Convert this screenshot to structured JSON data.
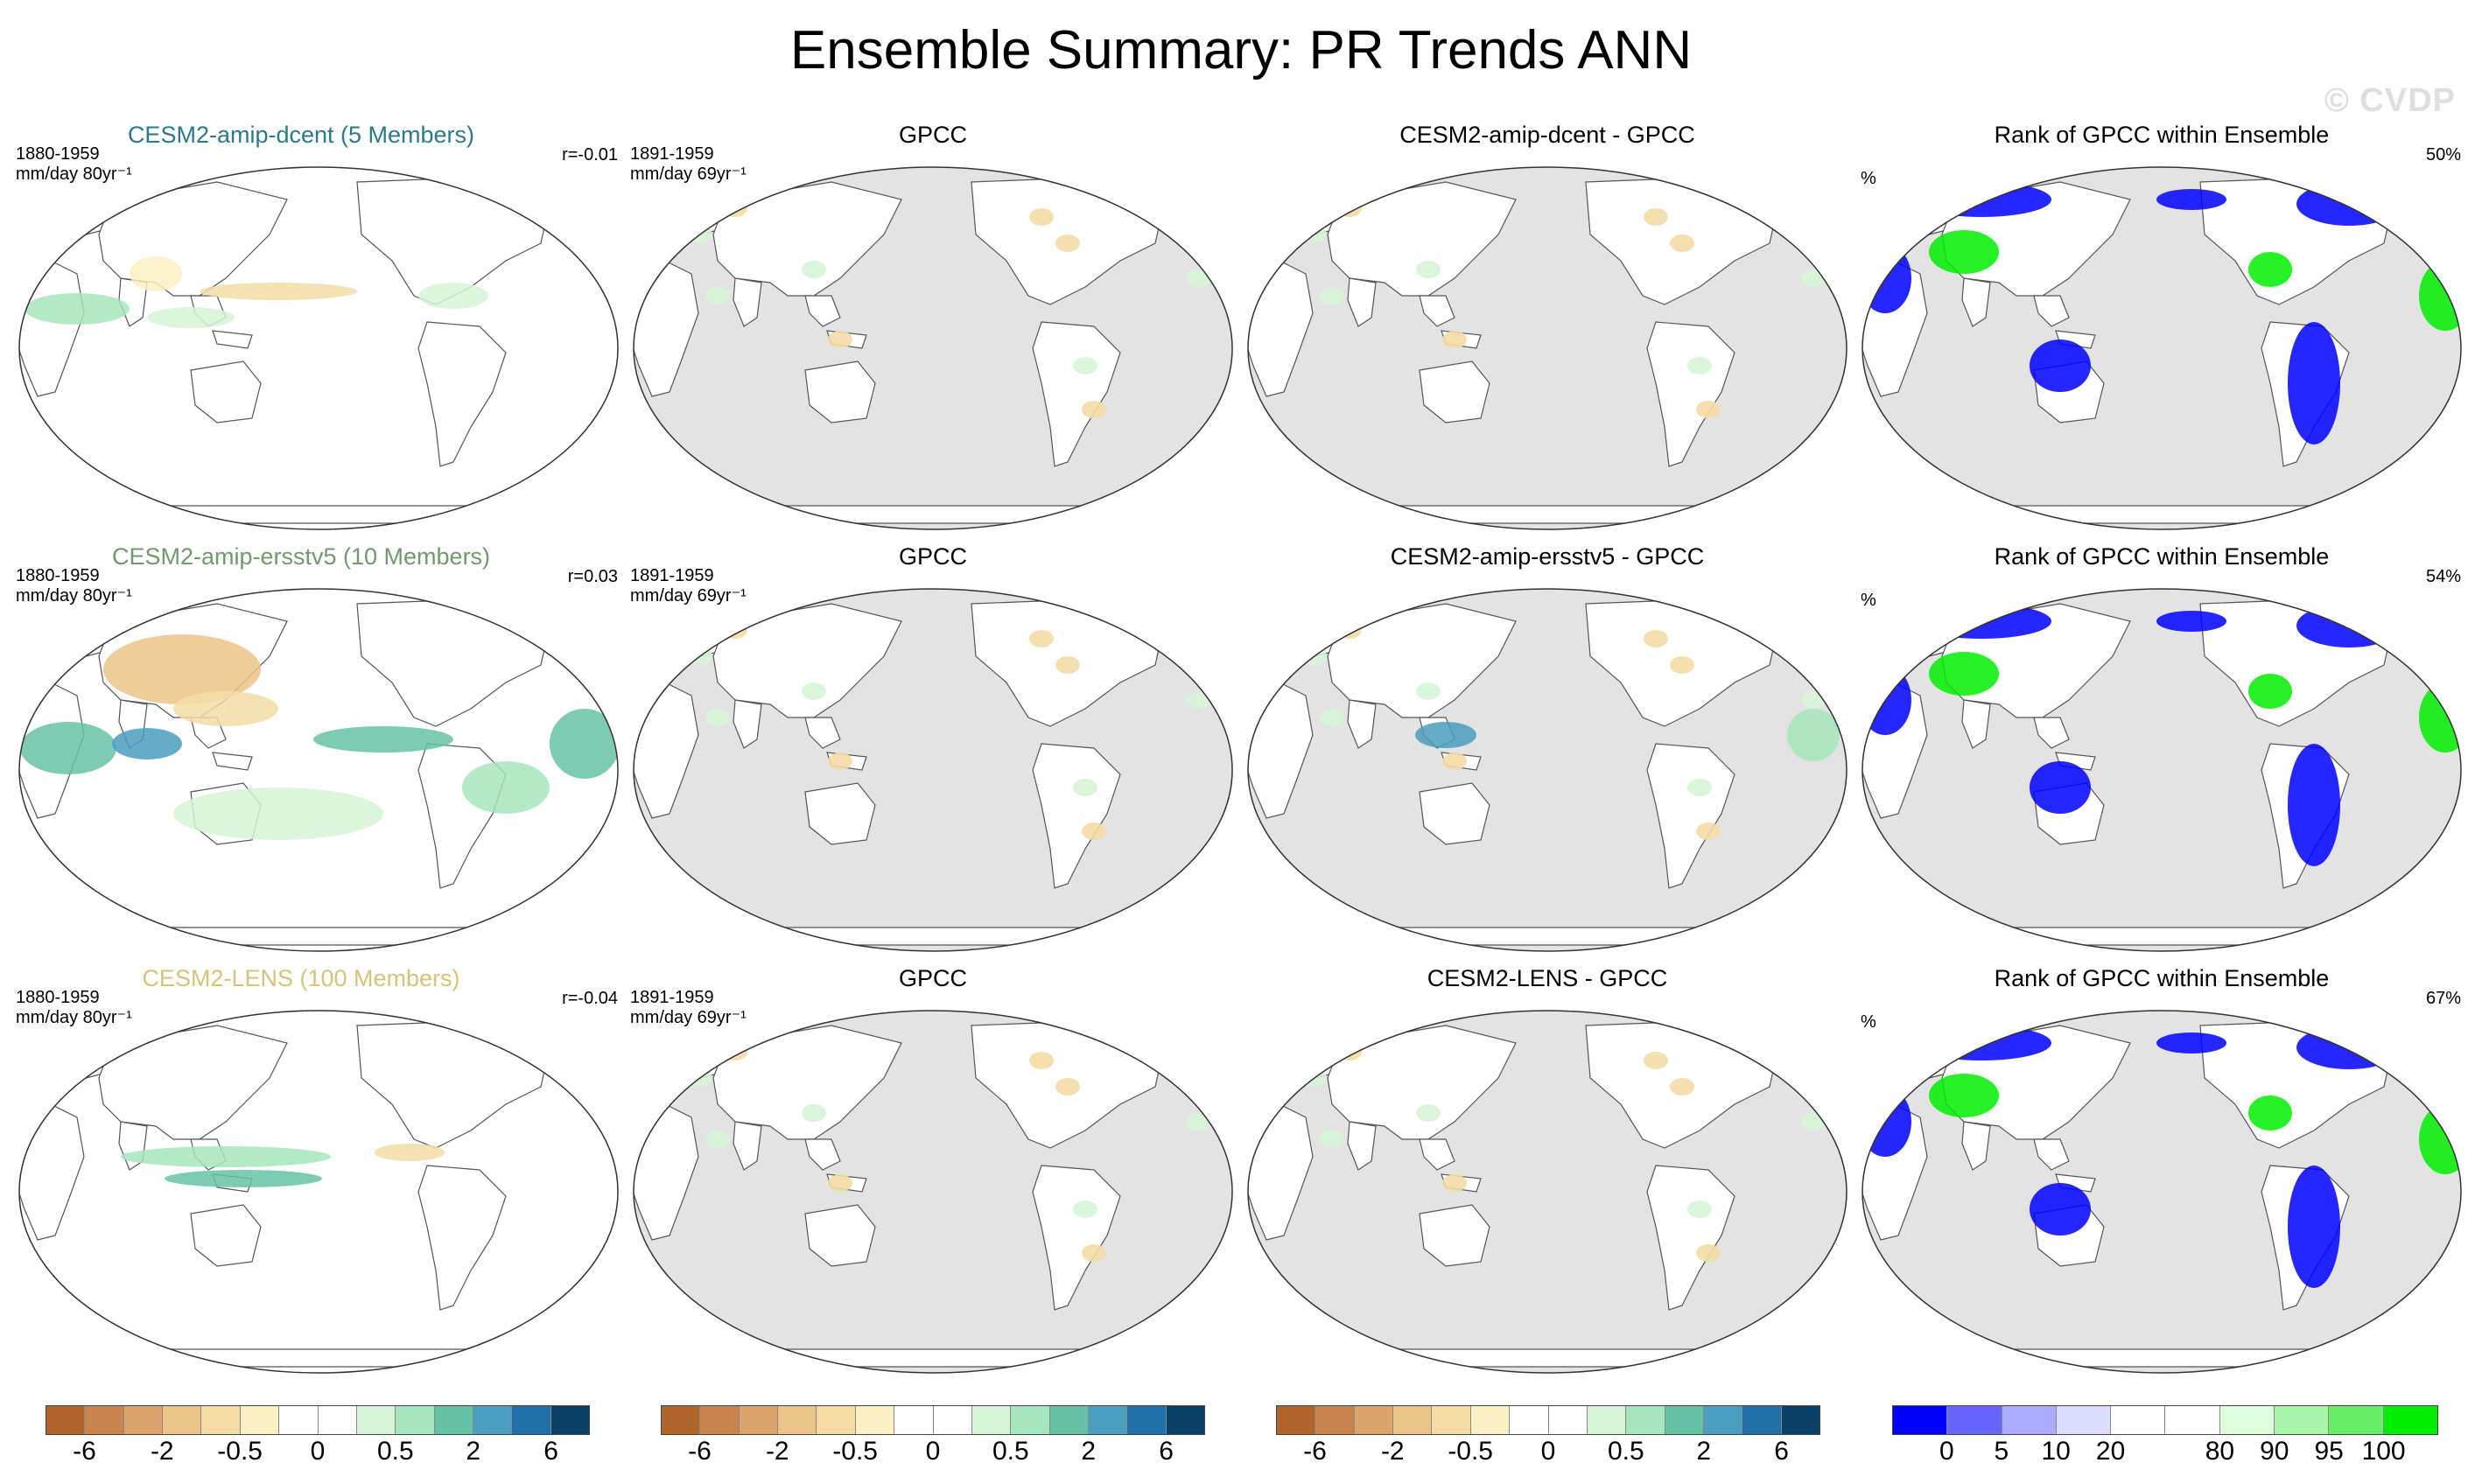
{
  "title": "Ensemble Summary: PR Trends ANN",
  "watermark": "© CVDP",
  "colors": {
    "ocean_gray": "#e3e3e3",
    "land_white": "#ffffff",
    "coast": "#555555",
    "title_dcent": "#2a7a8a",
    "title_ersstv5": "#6f9a6a",
    "title_lens": "#d8c277",
    "rank_blue": "#0000ff",
    "rank_green": "#00ee00"
  },
  "rows": [
    {
      "panels": [
        {
          "title": "CESM2-amip-dcent (5 Members)",
          "period": "1880-1959",
          "units": "mm/day 80yr⁻¹",
          "stat": "r=-0.01"
        },
        {
          "title": "GPCC",
          "period": "1891-1959",
          "units": "mm/day 69yr⁻¹"
        },
        {
          "title": "CESM2-amip-dcent - GPCC"
        },
        {
          "title": "Rank of GPCC within Ensemble",
          "units": "%",
          "stat": "50%"
        }
      ]
    },
    {
      "panels": [
        {
          "title": "CESM2-amip-ersstv5 (10 Members)",
          "period": "1880-1959",
          "units": "mm/day 80yr⁻¹",
          "stat": "r=0.03"
        },
        {
          "title": "GPCC",
          "period": "1891-1959",
          "units": "mm/day 69yr⁻¹"
        },
        {
          "title": "CESM2-amip-ersstv5 - GPCC"
        },
        {
          "title": "Rank of GPCC within Ensemble",
          "units": "%",
          "stat": "54%"
        }
      ]
    },
    {
      "panels": [
        {
          "title": "CESM2-LENS (100 Members)",
          "period": "1880-1959",
          "units": "mm/day 80yr⁻¹",
          "stat": "r=-0.04"
        },
        {
          "title": "GPCC",
          "period": "1891-1959",
          "units": "mm/day 69yr⁻¹"
        },
        {
          "title": "CESM2-LENS - GPCC"
        },
        {
          "title": "Rank of GPCC within Ensemble",
          "units": "%",
          "stat": "67%"
        }
      ]
    }
  ],
  "colorbars": {
    "trend": {
      "colors": [
        "#b0642a",
        "#c8844a",
        "#dba46a",
        "#ecc488",
        "#f5dca6",
        "#fbf0c4",
        "#ffffff",
        "#ffffff",
        "#d6f5d6",
        "#a6e6bc",
        "#66c2a4",
        "#4a9ec0",
        "#1f6fa8",
        "#0a3f66"
      ],
      "labels": [
        "-6",
        "-2",
        "-0.5",
        "0",
        "0.5",
        "2",
        "6"
      ],
      "label_index": [
        1,
        3,
        5,
        7,
        9,
        11,
        13
      ]
    },
    "rank": {
      "colors": [
        "#0000ff",
        "#6666ff",
        "#aaaaff",
        "#dcdcff",
        "#ffffff",
        "#ffffff",
        "#dcffdc",
        "#aaf5aa",
        "#66ee66",
        "#00ee00"
      ],
      "labels": [
        "0",
        "5",
        "10",
        "20",
        "80",
        "90",
        "95",
        "100"
      ],
      "label_index": [
        1,
        2,
        3,
        4,
        6,
        7,
        8,
        9
      ]
    }
  }
}
